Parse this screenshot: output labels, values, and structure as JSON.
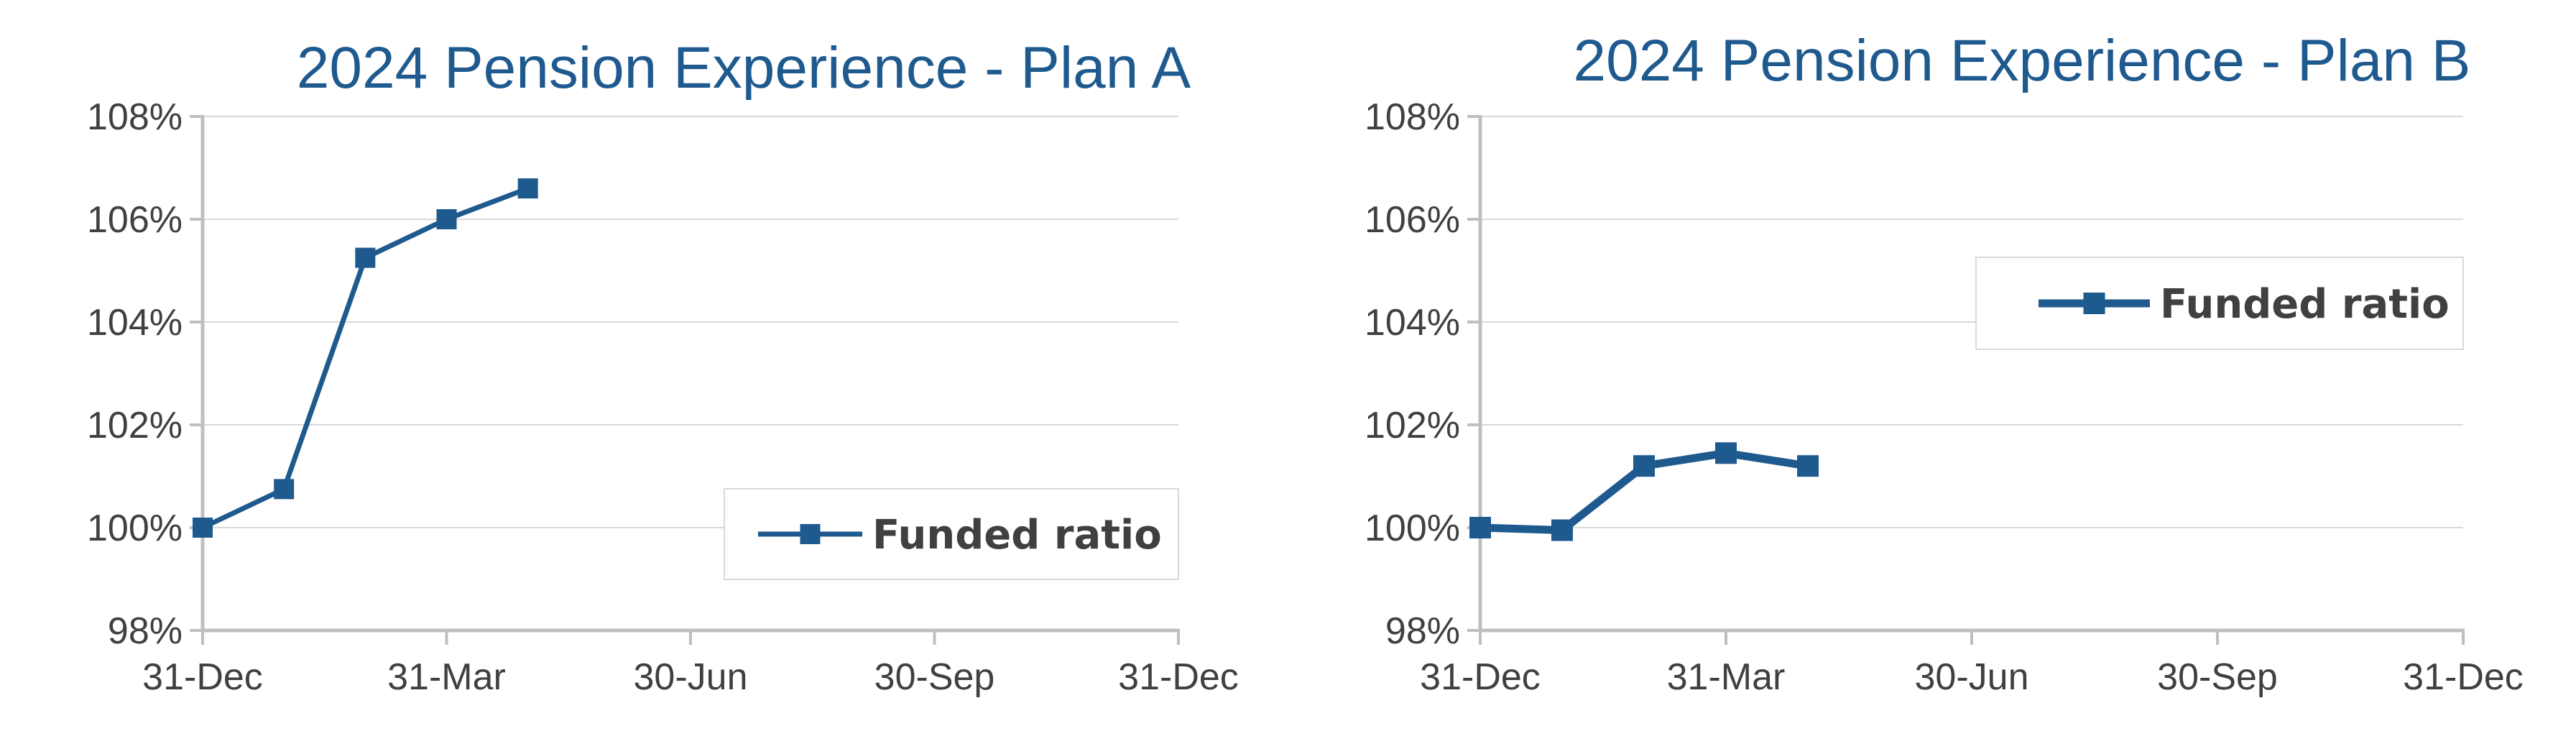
{
  "chart_data": [
    {
      "type": "line",
      "title": "2024 Pension Experience - Plan A",
      "xlabel": "",
      "ylabel": "",
      "x_ticks": [
        "31-Dec",
        "31-Mar",
        "30-Jun",
        "30-Sep",
        "31-Dec"
      ],
      "x_tick_positions": [
        0,
        3,
        6,
        9,
        12
      ],
      "x_range": [
        0,
        12
      ],
      "y_ticks": [
        "98%",
        "100%",
        "102%",
        "104%",
        "106%",
        "108%"
      ],
      "y_tick_values": [
        98,
        100,
        102,
        104,
        106,
        108
      ],
      "ylim": [
        98,
        108
      ],
      "grid": true,
      "legend_position": "bottom-right",
      "series": [
        {
          "name": "Funded ratio",
          "color": "#1f5a8f",
          "marker": "square",
          "x": [
            0,
            1,
            2,
            3,
            4
          ],
          "values": [
            100.0,
            100.75,
            105.25,
            106.0,
            106.6
          ]
        }
      ]
    },
    {
      "type": "line",
      "title": "2024 Pension Experience - Plan B",
      "xlabel": "",
      "ylabel": "",
      "x_ticks": [
        "31-Dec",
        "31-Mar",
        "30-Jun",
        "30-Sep",
        "31-Dec"
      ],
      "x_tick_positions": [
        0,
        3,
        6,
        9,
        12
      ],
      "x_range": [
        0,
        12
      ],
      "y_ticks": [
        "98%",
        "100%",
        "102%",
        "104%",
        "106%",
        "108%"
      ],
      "y_tick_values": [
        98,
        100,
        102,
        104,
        106,
        108
      ],
      "ylim": [
        98,
        108
      ],
      "grid": true,
      "legend_position": "top-right",
      "series": [
        {
          "name": "Funded ratio",
          "color": "#1f5a8f",
          "marker": "square",
          "x": [
            0,
            1,
            2,
            3,
            4
          ],
          "values": [
            100.0,
            99.95,
            101.2,
            101.45,
            101.2
          ]
        }
      ]
    }
  ]
}
